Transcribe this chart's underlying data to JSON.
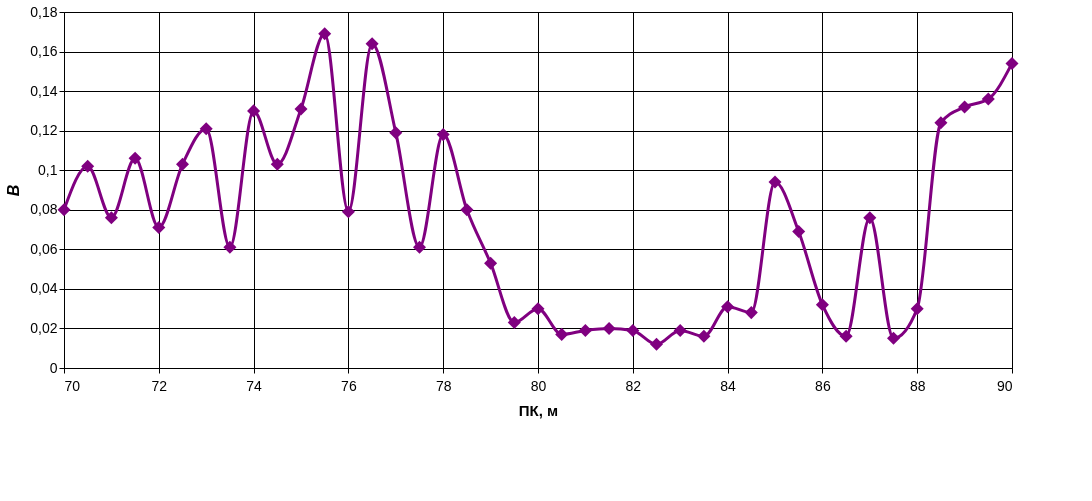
{
  "chart_data": {
    "type": "line",
    "xlabel": "ПК, м",
    "ylabel": "B",
    "x": [
      70,
      70.5,
      71,
      71.5,
      72,
      72.5,
      73,
      73.5,
      74,
      74.5,
      75,
      75.5,
      76,
      76.5,
      77,
      77.5,
      78,
      78.5,
      79,
      79.5,
      80,
      80.5,
      81,
      81.5,
      82,
      82.5,
      83,
      83.5,
      84,
      84.5,
      85,
      85.5,
      86,
      86.5,
      87,
      87.5,
      88,
      88.5,
      89,
      89.5,
      90
    ],
    "series": [
      {
        "color": "#800080",
        "values": [
          0.08,
          0.102,
          0.076,
          0.106,
          0.071,
          0.103,
          0.121,
          0.061,
          0.13,
          0.103,
          0.131,
          0.169,
          0.079,
          0.164,
          0.119,
          0.061,
          0.118,
          0.08,
          0.053,
          0.023,
          0.03,
          0.017,
          0.019,
          0.02,
          0.019,
          0.012,
          0.019,
          0.016,
          0.031,
          0.028,
          0.094,
          0.069,
          0.032,
          0.016,
          0.076,
          0.015,
          0.03,
          0.124,
          0.132,
          0.136,
          0.154
        ]
      }
    ],
    "xlim": [
      70,
      90
    ],
    "xticks": [
      70,
      72,
      74,
      76,
      78,
      80,
      82,
      84,
      86,
      88,
      90
    ],
    "ylim": [
      0,
      0.18
    ],
    "yticks": [
      0,
      {
        "value": 0.02,
        "label": "0,02"
      },
      {
        "value": 0.04,
        "label": "0,04"
      },
      {
        "value": 0.06,
        "label": "0,06"
      },
      {
        "value": 0.08,
        "label": "0,08"
      },
      {
        "value": 0.1,
        "label": "0,1"
      },
      {
        "value": 0.12,
        "label": "0,12"
      },
      {
        "value": 0.14,
        "label": "0,14"
      },
      {
        "value": 0.16,
        "label": "0,16"
      },
      {
        "value": 0.18,
        "label": "0,18"
      }
    ],
    "grid": true,
    "marker": "diamond",
    "line_style": "solid"
  }
}
